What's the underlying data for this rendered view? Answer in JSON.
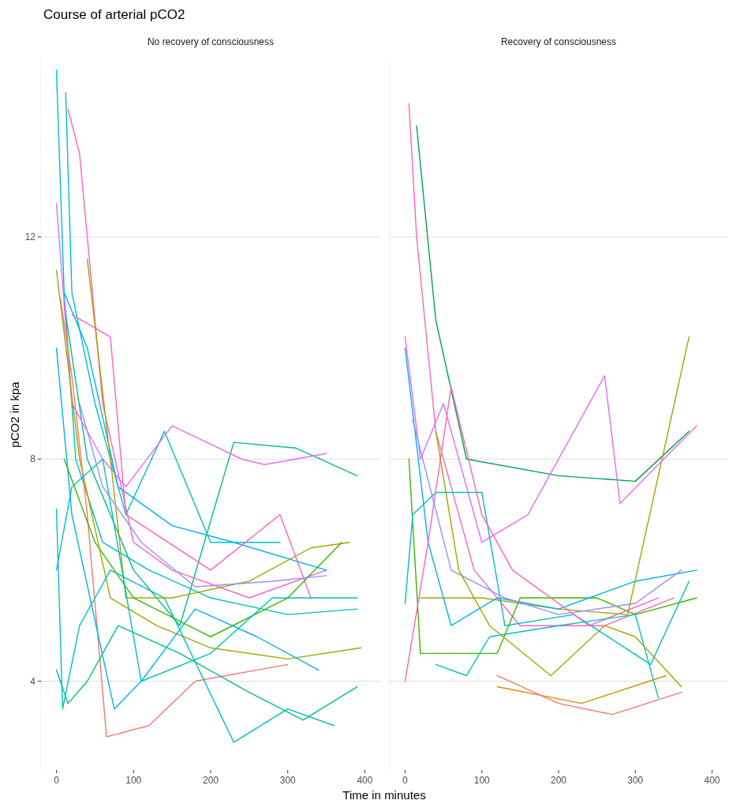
{
  "chart_data": [
    {
      "type": "line",
      "title": "Course of arterial pCO2",
      "subtitle": "No recovery of consciousness",
      "xlabel": "Time in minutes",
      "ylabel": "pCO2 in kpa",
      "xlim": [
        -20,
        420
      ],
      "xticks": [
        0,
        100,
        200,
        300,
        400
      ],
      "ylim": [
        2.4,
        15.2
      ],
      "yticks": [
        4,
        8,
        12
      ],
      "grid": "y",
      "series": [
        {
          "color": "#00BFC4",
          "x": [
            0,
            10,
            25,
            60,
            120,
            200,
            300,
            390
          ],
          "values": [
            15.0,
            11,
            8,
            6.5,
            6.0,
            5.5,
            5.2,
            5.3
          ]
        },
        {
          "color": "#FF62BC",
          "x": [
            15,
            30,
            60,
            100,
            150,
            250,
            350
          ],
          "values": [
            14.3,
            13.5,
            9,
            6.5,
            6,
            5.5,
            6
          ]
        },
        {
          "color": "#00BFC4",
          "x": [
            12,
            20,
            50,
            90,
            140,
            200,
            290
          ],
          "values": [
            14.6,
            11,
            9,
            7,
            8.5,
            6.5,
            6.5
          ]
        },
        {
          "color": "#00B0F6",
          "x": [
            10,
            40,
            80,
            150,
            230,
            350
          ],
          "values": [
            11,
            10,
            7.5,
            6.8,
            6.5,
            6
          ]
        },
        {
          "color": "#00BF7D",
          "x": [
            10,
            40,
            100,
            160,
            230,
            310,
            390
          ],
          "values": [
            10.8,
            8,
            6,
            5,
            8.3,
            8.2,
            7.7
          ]
        },
        {
          "color": "#E76BF3",
          "x": [
            0,
            20,
            60,
            90,
            150,
            240,
            270,
            350
          ],
          "values": [
            12.6,
            9,
            8,
            7.5,
            8.6,
            8,
            7.9,
            8.1
          ]
        },
        {
          "color": "#A3A500",
          "x": [
            0,
            30,
            70,
            130,
            200,
            300,
            395
          ],
          "values": [
            11.4,
            8,
            5.5,
            5,
            4.6,
            4.4,
            4.6
          ]
        },
        {
          "color": "#F8766D",
          "x": [
            5,
            20,
            40,
            65,
            120,
            180,
            300
          ],
          "values": [
            10.9,
            9.5,
            7,
            3,
            3.2,
            4,
            4.3
          ]
        },
        {
          "color": "#00BFC4",
          "x": [
            0,
            8,
            30,
            70,
            140,
            230,
            300,
            360
          ],
          "values": [
            7.1,
            3.5,
            5,
            6,
            5.5,
            2.9,
            3.5,
            3.2
          ]
        },
        {
          "color": "#00BF7D",
          "x": [
            0,
            15,
            40,
            80,
            160,
            250,
            320,
            390
          ],
          "values": [
            4.2,
            3.6,
            4,
            5,
            4.5,
            3.8,
            3.3,
            3.9
          ]
        },
        {
          "color": "#A3A500",
          "x": [
            40,
            70,
            90,
            150,
            250,
            330,
            380
          ],
          "values": [
            11.6,
            8,
            5.5,
            5.5,
            5.8,
            6.4,
            6.5
          ]
        },
        {
          "color": "#00B0F6",
          "x": [
            0,
            20,
            75,
            110,
            180,
            260,
            340
          ],
          "values": [
            10,
            7,
            3.5,
            4,
            5.3,
            4.8,
            4.2
          ]
        },
        {
          "color": "#FF62BC",
          "x": [
            20,
            70,
            90,
            200,
            290,
            330
          ],
          "values": [
            10.6,
            10.2,
            7,
            6,
            7,
            5.5
          ]
        },
        {
          "color": "#39B600",
          "x": [
            10,
            50,
            100,
            200,
            300,
            370
          ],
          "values": [
            8,
            6.5,
            5.5,
            4.8,
            5.5,
            6.5
          ]
        },
        {
          "color": "#9590FF",
          "x": [
            30,
            60,
            110,
            180,
            280,
            350
          ],
          "values": [
            9,
            7.5,
            6.5,
            5.7,
            5.8,
            5.9
          ]
        },
        {
          "color": "#00BFC4",
          "x": [
            0,
            20,
            60,
            110,
            200,
            280,
            390
          ],
          "values": [
            6,
            7.5,
            8,
            4,
            4.5,
            5.5,
            5.5
          ]
        }
      ]
    },
    {
      "type": "line",
      "subtitle": "Recovery of consciousness",
      "xlim": [
        -20,
        420
      ],
      "xticks": [
        0,
        100,
        200,
        300,
        400
      ],
      "ylim": [
        2.4,
        15.2
      ],
      "yticks": [
        4,
        8,
        12
      ],
      "grid": "y",
      "tick_labels": "x",
      "series": [
        {
          "color": "#00A34F",
          "x": [
            15,
            40,
            80,
            200,
            300,
            370
          ],
          "values": [
            14,
            10.5,
            8,
            7.7,
            7.6,
            8.5
          ]
        },
        {
          "color": "#FF62BC",
          "x": [
            5,
            15,
            40,
            90,
            150,
            260,
            350
          ],
          "values": [
            14.4,
            12,
            8.5,
            6,
            5,
            5,
            5.5
          ]
        },
        {
          "color": "#A3A500",
          "x": [
            20,
            100,
            200,
            290,
            370
          ],
          "values": [
            5.5,
            5.5,
            5.3,
            5.2,
            10.2
          ]
        },
        {
          "color": "#E76BF3",
          "x": [
            0,
            20,
            50,
            100,
            160,
            260,
            280,
            380
          ],
          "values": [
            10.2,
            8,
            9,
            6.5,
            7,
            9.5,
            7.2,
            8.6
          ]
        },
        {
          "color": "#39B600",
          "x": [
            5,
            20,
            120,
            150,
            250,
            300,
            380
          ],
          "values": [
            8,
            4.5,
            4.5,
            5.5,
            5.5,
            5.2,
            5.5
          ]
        },
        {
          "color": "#00BFC4",
          "x": [
            0,
            10,
            40,
            100,
            130,
            220,
            320,
            370
          ],
          "values": [
            5.4,
            7,
            7.4,
            7.4,
            5,
            5.2,
            4.3,
            5.8
          ]
        },
        {
          "color": "#00B0F6",
          "x": [
            0,
            30,
            60,
            120,
            200,
            300,
            380
          ],
          "values": [
            10,
            6.5,
            5,
            5.5,
            5.3,
            5.8,
            6
          ]
        },
        {
          "color": "#D89000",
          "x": [
            120,
            230,
            340
          ],
          "values": [
            3.9,
            3.6,
            4.1
          ]
        },
        {
          "color": "#F8766D",
          "x": [
            120,
            200,
            270,
            360
          ],
          "values": [
            4.1,
            3.6,
            3.4,
            3.8
          ]
        },
        {
          "color": "#FF62BC",
          "x": [
            0,
            30,
            60,
            100,
            140,
            240,
            330
          ],
          "values": [
            4,
            6.5,
            9.3,
            7,
            6,
            5,
            5.5
          ]
        },
        {
          "color": "#9590FF",
          "x": [
            10,
            60,
            130,
            200,
            300,
            360
          ],
          "values": [
            8.7,
            6,
            5.5,
            5.2,
            5.4,
            6
          ]
        },
        {
          "color": "#00BFC4",
          "x": [
            40,
            80,
            110,
            200,
            300,
            330
          ],
          "values": [
            4.3,
            4.1,
            4.8,
            5,
            5.2,
            3.7
          ]
        },
        {
          "color": "#A3A500",
          "x": [
            40,
            70,
            110,
            190,
            260,
            300,
            360
          ],
          "values": [
            8.5,
            6,
            5,
            4.1,
            5,
            4.8,
            3.9
          ]
        }
      ]
    }
  ]
}
